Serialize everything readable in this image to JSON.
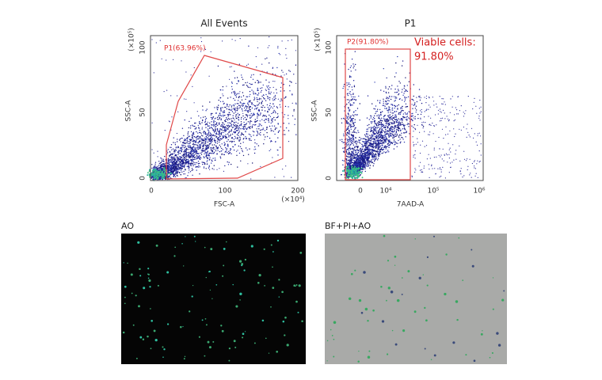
{
  "panels": [
    {
      "title": "All Events",
      "x_label": "FSC-A",
      "y_label": "SSC-A",
      "x_exponent": "(×10⁴)",
      "y_exponent": "(×10⁵)",
      "xticks": [
        "0",
        "100",
        "200"
      ],
      "yticks": [
        "0",
        "50",
        "100"
      ],
      "gate": "P1(63.96%)"
    },
    {
      "title": "P1",
      "x_label": "7AAD-A",
      "y_label": "SSC-A",
      "y_exponent": "(×10⁵)",
      "xticks": [
        "0",
        "10⁴",
        "10⁵",
        "10⁶"
      ],
      "yticks": [
        "0",
        "50",
        "100"
      ],
      "gate": "P2(91.80%)",
      "annotation": [
        "Viable cells:",
        "91.80%"
      ]
    }
  ],
  "images": [
    {
      "label": "AO"
    },
    {
      "label": "BF+PI+AO"
    }
  ]
}
